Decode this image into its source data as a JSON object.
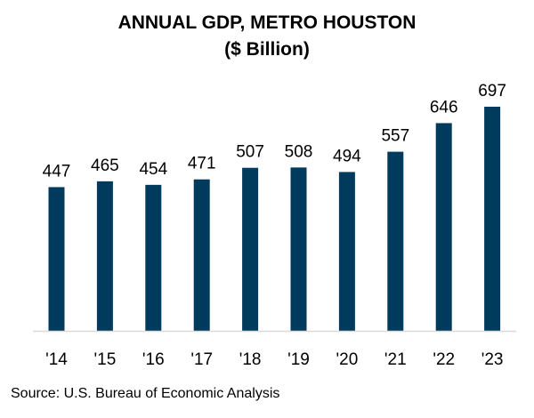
{
  "chart_data": {
    "type": "bar",
    "title": "ANNUAL GDP, METRO HOUSTON",
    "subtitle": "($ Billion)",
    "categories": [
      "'14",
      "'15",
      "'16",
      "'17",
      "'18",
      "'19",
      "'20",
      "'21",
      "'22",
      "'23"
    ],
    "values": [
      447,
      465,
      454,
      471,
      507,
      508,
      494,
      557,
      646,
      697
    ],
    "ylim": [
      0,
      697
    ],
    "grid": false,
    "data_labels": true,
    "bar_color": "#003a5c",
    "source": "Source: U.S. Bureau of Economic Analysis"
  }
}
